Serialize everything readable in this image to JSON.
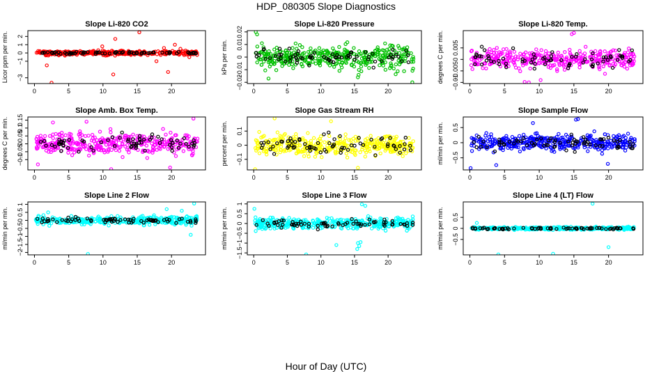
{
  "figure": {
    "title": "HDP_080305  Slope Diagnostics",
    "xlabel": "Hour of Day (UTC)",
    "overlay_color": "#000000"
  },
  "chart_data": [
    {
      "type": "scatter",
      "title": "Slope Li-820 CO2",
      "ylabel": "Licor ppm per min.",
      "color": "#ff0000",
      "xlim": [
        -0.96,
        24.96
      ],
      "xticks": [
        0,
        5,
        10,
        15,
        20
      ],
      "ylim": [
        -3.7,
        2.7
      ],
      "yticks": [
        -3,
        -1,
        0,
        1,
        2
      ],
      "n_points": 380,
      "n_overlay": 70,
      "spread": 0.22,
      "overlay_spread": 0.12,
      "outliers": [
        [
          2.5,
          -3.6
        ],
        [
          1.8,
          -1.5
        ],
        [
          11.5,
          -2.6
        ],
        [
          11.8,
          1.7
        ],
        [
          9.9,
          0.8
        ],
        [
          15.3,
          2.5
        ],
        [
          17.8,
          -1.0
        ],
        [
          19.5,
          -2.3
        ],
        [
          20.5,
          1.0
        ],
        [
          18.9,
          0.6
        ],
        [
          21.3,
          0.5
        ],
        [
          22.6,
          -0.5
        ]
      ]
    },
    {
      "type": "scatter",
      "title": "Slope Li-820 Pressure",
      "ylabel": "kPa per min.",
      "color": "#00c000",
      "xlim": [
        -0.96,
        24.96
      ],
      "xticks": [
        0,
        5,
        10,
        15,
        20
      ],
      "ylim": [
        -0.021,
        0.021
      ],
      "yticks": [
        -0.02,
        -0.01,
        0.0,
        0.01,
        0.02
      ],
      "n_points": 380,
      "n_overlay": 70,
      "spread": 0.0075,
      "overlay_spread": 0.006,
      "outliers": [
        [
          0.3,
          0.02
        ],
        [
          0.5,
          0.018
        ],
        [
          23.6,
          -0.02
        ],
        [
          15.5,
          -0.016
        ],
        [
          2.2,
          -0.017
        ]
      ]
    },
    {
      "type": "scatter",
      "title": "Slope Li-820 Temp.",
      "ylabel": "degrees C per min.",
      "color": "#ff00ff",
      "xlim": [
        -0.96,
        24.96
      ],
      "xticks": [
        0,
        5,
        10,
        15,
        20
      ],
      "ylim": [
        -0.0105,
        0.0125
      ],
      "yticks": [
        -0.01,
        -0.005,
        0.0,
        0.005
      ],
      "n_points": 380,
      "n_overlay": 70,
      "spread": 0.0035,
      "overlay_spread": 0.003,
      "outliers": [
        [
          15.0,
          0.0115
        ],
        [
          14.7,
          0.011
        ],
        [
          7.9,
          -0.0098
        ],
        [
          8.5,
          -0.01
        ],
        [
          10.2,
          -0.009
        ]
      ]
    },
    {
      "type": "scatter",
      "title": "Slope Amb. Box Temp.",
      "ylabel": "degrees C per min.",
      "color": "#ff00ff",
      "xlim": [
        -0.96,
        24.96
      ],
      "xticks": [
        0,
        5,
        10,
        15,
        20
      ],
      "ylim": [
        -0.165,
        0.17
      ],
      "yticks": [
        -0.1,
        -0.05,
        0.0,
        0.05,
        0.1,
        0.15
      ],
      "n_points": 380,
      "n_overlay": 70,
      "spread": 0.055,
      "overlay_spread": 0.05,
      "outliers": [
        [
          7.6,
          0.14
        ],
        [
          2.7,
          0.135
        ],
        [
          23.2,
          0.16
        ],
        [
          0.5,
          -0.13
        ],
        [
          11.2,
          -0.16
        ],
        [
          19.8,
          -0.15
        ]
      ]
    },
    {
      "type": "scatter",
      "title": "Slope Gas Stream RH",
      "ylabel": "percent per min.",
      "color": "#ffff00",
      "xlim": [
        -0.96,
        24.96
      ],
      "xticks": [
        0,
        5,
        10,
        15,
        20
      ],
      "ylim": [
        -0.175,
        0.2
      ],
      "yticks": [
        -0.1,
        0.0,
        0.1
      ],
      "n_points": 380,
      "n_overlay": 70,
      "spread": 0.06,
      "overlay_spread": 0.055,
      "outliers": [
        [
          0.2,
          -0.17
        ],
        [
          3.1,
          0.19
        ],
        [
          11.5,
          0.17
        ],
        [
          15.5,
          -0.16
        ]
      ]
    },
    {
      "type": "scatter",
      "title": "Slope Sample Flow",
      "ylabel": "ml/min per min.",
      "color": "#0000ff",
      "xlim": [
        -0.96,
        24.96
      ],
      "xticks": [
        0,
        5,
        10,
        15,
        20
      ],
      "ylim": [
        -0.9,
        0.85
      ],
      "yticks": [
        -0.5,
        0.0,
        0.5
      ],
      "n_points": 380,
      "n_overlay": 70,
      "spread": 0.22,
      "overlay_spread": 0.2,
      "outliers": [
        [
          15.3,
          0.76
        ],
        [
          15.6,
          0.78
        ],
        [
          9.1,
          0.65
        ],
        [
          0.1,
          -0.84
        ],
        [
          3.8,
          -0.74
        ],
        [
          19.9,
          -0.7
        ]
      ]
    },
    {
      "type": "scatter",
      "title": "Slope Line 2 Flow",
      "ylabel": "ml/min per min.",
      "color": "#00ffff",
      "xlim": [
        -0.96,
        24.96
      ],
      "xticks": [
        0,
        5,
        10,
        15,
        20
      ],
      "ylim": [
        -2.15,
        1.15
      ],
      "yticks": [
        -2.0,
        -1.5,
        -1.0,
        -0.5,
        0.0,
        0.5,
        1.0
      ],
      "n_points": 380,
      "n_overlay": 70,
      "spread": 0.2,
      "overlay_spread": 0.13,
      "outliers": [
        [
          7.8,
          -2.1
        ],
        [
          22.8,
          -0.9
        ],
        [
          23.3,
          1.05
        ],
        [
          21.5,
          0.6
        ],
        [
          19.3,
          0.7
        ],
        [
          2.0,
          0.5
        ]
      ]
    },
    {
      "type": "scatter",
      "title": "Slope Line 3 Flow",
      "ylabel": "ml/min per min.",
      "color": "#00ffff",
      "xlim": [
        -0.96,
        24.96
      ],
      "xticks": [
        0,
        5,
        10,
        15,
        20
      ],
      "ylim": [
        -1.6,
        1.1
      ],
      "yticks": [
        -1.5,
        -1.0,
        -0.5,
        0.0,
        0.5,
        1.0
      ],
      "n_points": 380,
      "n_overlay": 70,
      "spread": 0.22,
      "overlay_spread": 0.2,
      "outliers": [
        [
          7.8,
          -1.58
        ],
        [
          15.4,
          -1.3
        ],
        [
          15.7,
          -1.15
        ],
        [
          15.9,
          -0.95
        ],
        [
          15.5,
          -1.0
        ],
        [
          16.1,
          0.98
        ],
        [
          16.6,
          0.9
        ],
        [
          0.1,
          0.75
        ],
        [
          12.3,
          -1.1
        ]
      ]
    },
    {
      "type": "scatter",
      "title": "Slope Line 4 (LT) Flow",
      "ylabel": "ml/min per min.",
      "color": "#00ffff",
      "xlim": [
        -0.96,
        24.96
      ],
      "xticks": [
        0,
        5,
        10,
        15,
        20
      ],
      "ylim": [
        -1.2,
        1.2
      ],
      "yticks": [
        -0.5,
        0.0,
        0.5
      ],
      "n_points": 380,
      "n_overlay": 70,
      "spread": 0.05,
      "overlay_spread": 0.04,
      "outliers": [
        [
          4.1,
          -1.18
        ],
        [
          12.0,
          -1.15
        ],
        [
          17.7,
          1.12
        ],
        [
          20.0,
          -0.85
        ],
        [
          1.0,
          0.25
        ]
      ]
    }
  ]
}
